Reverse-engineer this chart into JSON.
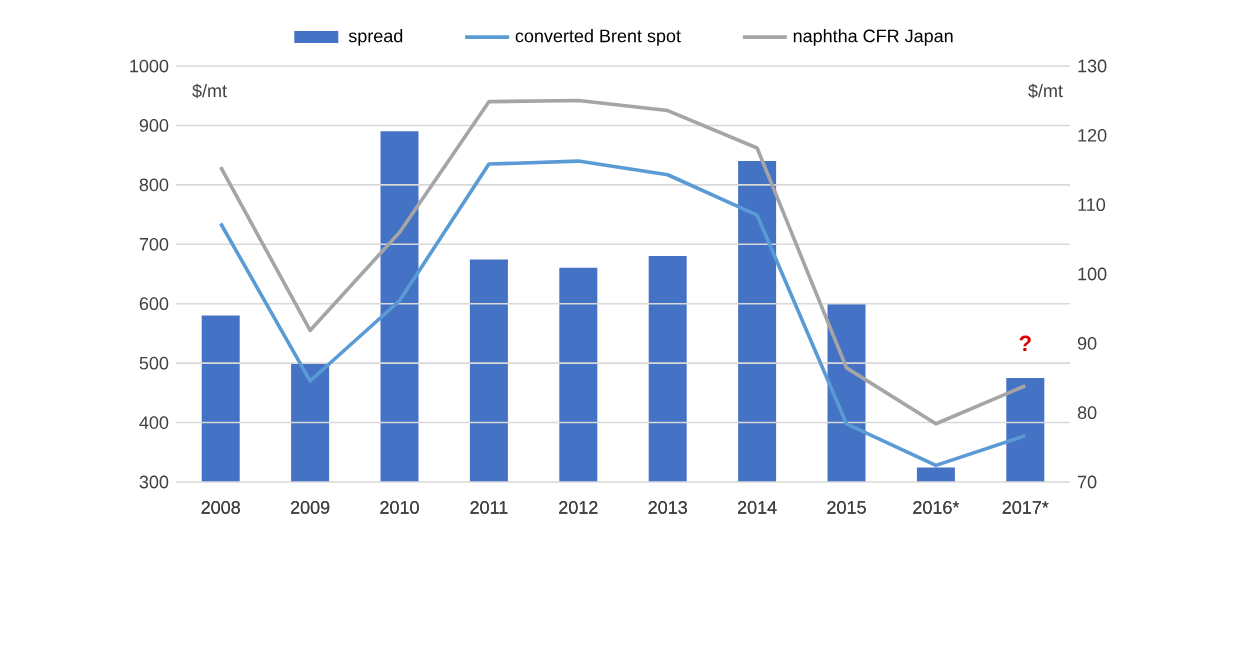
{
  "chart_data": {
    "type": "bar",
    "categories": [
      "2008",
      "2009",
      "2010",
      "2011",
      "2012",
      "2013",
      "2014",
      "2015",
      "2016*",
      "2017*"
    ],
    "series": [
      {
        "name": "spread",
        "axis": "y2",
        "color": "#4472c4",
        "values": [
          94,
          87.1,
          120.6,
          102.1,
          100.9,
          102.6,
          116.3,
          95.7,
          72.1,
          85
        ]
      },
      {
        "name": "converted Brent spot",
        "type": "line",
        "color": "#5b9bd5",
        "values": [
          735,
          470,
          605,
          835,
          840,
          817,
          749,
          398,
          328,
          378
        ]
      },
      {
        "name": "naphtha CFR Japan",
        "type": "line",
        "color": "#a5a5a5",
        "values": [
          830,
          555,
          720,
          940,
          942,
          925,
          862,
          492,
          398,
          462
        ]
      }
    ],
    "ylabel": "$/mt",
    "y2label": "$/mt",
    "ylim": [
      300,
      1000
    ],
    "yticks": [
      300,
      400,
      500,
      600,
      700,
      800,
      900,
      1000
    ],
    "y2lim": [
      70,
      130
    ],
    "y2ticks": [
      70,
      80,
      90,
      100,
      110,
      120,
      130
    ],
    "annotations": [
      "?"
    ],
    "grid": "y",
    "legend": "top"
  }
}
